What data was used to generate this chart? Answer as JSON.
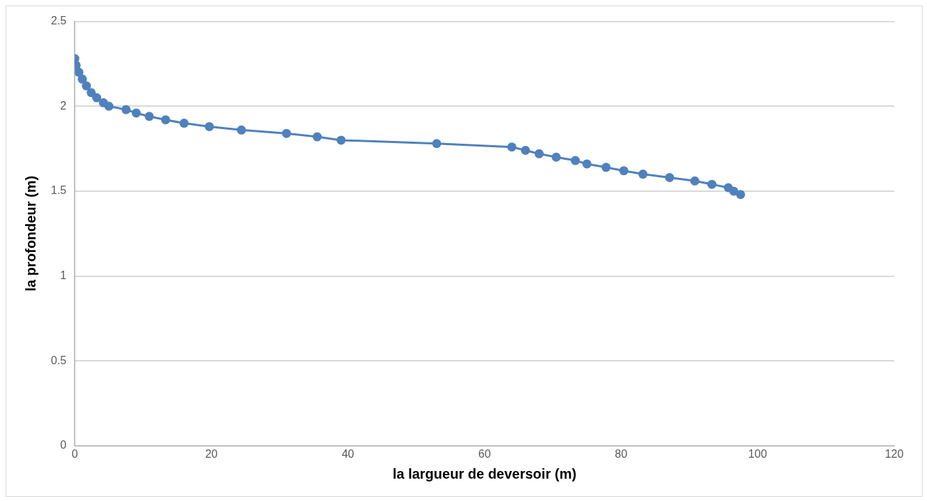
{
  "chart_data": {
    "type": "line",
    "xlabel": "la largueur de deversoir (m)",
    "ylabel": "la profondeur (m)",
    "series": [
      {
        "color": "#4f81bd",
        "x": [
          0,
          0.2,
          0.6,
          1.1,
          1.7,
          2.4,
          3.2,
          4.2,
          5,
          7.5,
          9,
          10.9,
          13.3,
          16,
          19.7,
          24.4,
          31,
          35.5,
          39,
          53,
          64,
          66,
          68,
          70.5,
          73.3,
          75,
          77.8,
          80.4,
          83.2,
          87.1,
          90.8,
          93.3,
          95.7,
          96.5,
          97.5
        ],
        "values": [
          2.28,
          2.24,
          2.2,
          2.16,
          2.12,
          2.08,
          2.05,
          2.02,
          2.0,
          1.98,
          1.96,
          1.94,
          1.92,
          1.9,
          1.88,
          1.86,
          1.84,
          1.82,
          1.8,
          1.78,
          1.76,
          1.74,
          1.72,
          1.7,
          1.68,
          1.66,
          1.64,
          1.62,
          1.6,
          1.58,
          1.56,
          1.54,
          1.52,
          1.5,
          1.48
        ]
      }
    ],
    "xlim": [
      0,
      120
    ],
    "xticks": [
      0,
      20,
      40,
      60,
      80,
      100,
      120
    ],
    "ylim": [
      0,
      2.5
    ],
    "yticks": [
      0,
      0.5,
      1,
      1.5,
      2,
      2.5
    ],
    "grid": "y",
    "marker": "circle",
    "line_style": "solid",
    "legend": false
  }
}
